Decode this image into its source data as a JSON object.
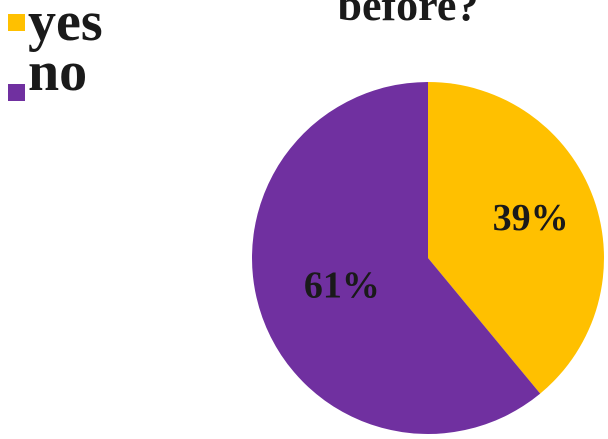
{
  "chart_data": {
    "type": "pie",
    "title": "before?",
    "categories": [
      "yes",
      "no"
    ],
    "values": [
      39,
      61
    ],
    "value_labels": [
      "39%",
      "61%"
    ],
    "colors": [
      "#FFC000",
      "#7030A0"
    ],
    "legend_placement": "top-left"
  }
}
